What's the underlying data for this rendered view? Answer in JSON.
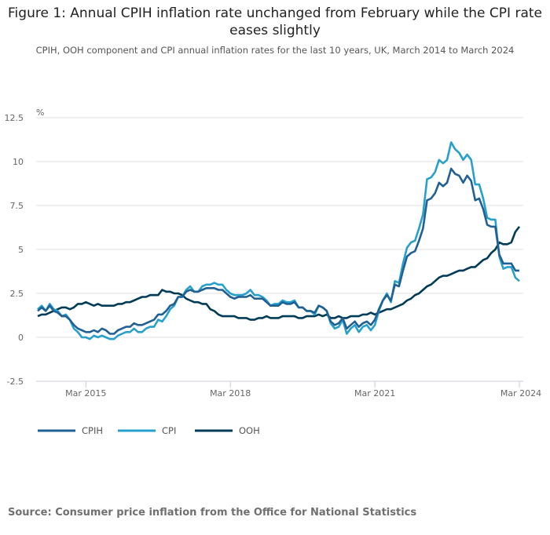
{
  "title": "Figure 1: Annual CPIH inflation rate unchanged from February while the CPI rate eases slightly",
  "subtitle": "CPIH, OOH component and CPI annual inflation rates for the last 10 years, UK, March 2014 to March 2024",
  "source": "Source: Consumer price inflation from the Office for National Statistics",
  "chart_data": {
    "type": "line",
    "ylabel": "%",
    "ylim": [
      -2.5,
      12.5
    ],
    "yticks": [
      "12.5",
      "10",
      "7.5",
      "5",
      "2.5",
      "0",
      "-2.5"
    ],
    "xticks": [
      "Mar 2015",
      "Mar 2018",
      "Mar 2021",
      "Mar 2024"
    ],
    "x_start": "Mar 2014",
    "x_end": "Mar 2024",
    "frequency": "monthly",
    "grid": true,
    "legend_position": "bottom-left",
    "series": [
      {
        "name": "CPIH",
        "color": "#206095",
        "values": [
          1.5,
          1.7,
          1.5,
          1.8,
          1.5,
          1.4,
          1.2,
          1.2,
          1.0,
          0.7,
          0.5,
          0.4,
          0.3,
          0.3,
          0.4,
          0.3,
          0.5,
          0.4,
          0.2,
          0.2,
          0.4,
          0.5,
          0.6,
          0.6,
          0.8,
          0.7,
          0.7,
          0.8,
          0.9,
          1.0,
          1.3,
          1.3,
          1.5,
          1.8,
          1.9,
          2.3,
          2.3,
          2.6,
          2.7,
          2.6,
          2.6,
          2.7,
          2.8,
          2.8,
          2.8,
          2.7,
          2.7,
          2.5,
          2.3,
          2.2,
          2.3,
          2.3,
          2.3,
          2.4,
          2.2,
          2.2,
          2.2,
          2.0,
          1.8,
          1.8,
          1.8,
          2.0,
          1.9,
          1.9,
          2.0,
          1.7,
          1.7,
          1.5,
          1.5,
          1.4,
          1.8,
          1.7,
          1.5,
          0.9,
          0.7,
          0.8,
          1.1,
          0.5,
          0.7,
          0.9,
          0.6,
          0.8,
          0.9,
          0.7,
          1.0,
          1.6,
          2.1,
          2.4,
          2.1,
          3.0,
          2.9,
          3.8,
          4.6,
          4.8,
          4.9,
          5.5,
          6.2,
          7.8,
          7.9,
          8.2,
          8.8,
          8.6,
          8.8,
          9.6,
          9.3,
          9.2,
          8.8,
          9.2,
          8.9,
          7.8,
          7.9,
          7.3,
          6.4,
          6.3,
          6.3,
          4.7,
          4.2,
          4.2,
          4.2,
          3.8,
          3.8
        ]
      },
      {
        "name": "CPI",
        "color": "#27a0cc",
        "values": [
          1.6,
          1.8,
          1.5,
          1.9,
          1.6,
          1.5,
          1.2,
          1.3,
          1.0,
          0.5,
          0.3,
          0.0,
          0.0,
          -0.1,
          0.1,
          0.0,
          0.1,
          0.0,
          -0.1,
          -0.1,
          0.1,
          0.2,
          0.3,
          0.3,
          0.5,
          0.3,
          0.3,
          0.5,
          0.6,
          0.6,
          1.0,
          0.9,
          1.2,
          1.6,
          1.8,
          2.3,
          2.3,
          2.7,
          2.9,
          2.6,
          2.6,
          2.9,
          3.0,
          3.0,
          3.1,
          3.0,
          3.0,
          2.7,
          2.5,
          2.4,
          2.4,
          2.4,
          2.5,
          2.7,
          2.4,
          2.4,
          2.3,
          2.1,
          1.8,
          1.9,
          1.9,
          2.1,
          2.0,
          2.0,
          2.1,
          1.7,
          1.7,
          1.5,
          1.5,
          1.3,
          1.8,
          1.7,
          1.5,
          0.8,
          0.5,
          0.6,
          1.0,
          0.2,
          0.5,
          0.7,
          0.3,
          0.6,
          0.7,
          0.4,
          0.7,
          1.5,
          2.1,
          2.5,
          2.0,
          3.2,
          3.1,
          4.2,
          5.1,
          5.4,
          5.5,
          6.2,
          7.0,
          9.0,
          9.1,
          9.4,
          10.1,
          9.9,
          10.1,
          11.1,
          10.7,
          10.5,
          10.1,
          10.4,
          10.1,
          8.7,
          8.7,
          7.9,
          6.8,
          6.7,
          6.7,
          4.6,
          3.9,
          4.0,
          4.0,
          3.4,
          3.2
        ]
      },
      {
        "name": "OOH",
        "color": "#003c57",
        "values": [
          1.2,
          1.3,
          1.3,
          1.4,
          1.5,
          1.6,
          1.7,
          1.7,
          1.6,
          1.7,
          1.9,
          1.9,
          2.0,
          1.9,
          1.8,
          1.9,
          1.8,
          1.8,
          1.8,
          1.8,
          1.9,
          1.9,
          2.0,
          2.0,
          2.1,
          2.2,
          2.3,
          2.3,
          2.4,
          2.4,
          2.4,
          2.7,
          2.6,
          2.6,
          2.5,
          2.5,
          2.4,
          2.2,
          2.1,
          2.0,
          2.0,
          1.9,
          1.9,
          1.6,
          1.5,
          1.3,
          1.2,
          1.2,
          1.2,
          1.2,
          1.1,
          1.1,
          1.1,
          1.0,
          1.0,
          1.1,
          1.1,
          1.2,
          1.1,
          1.1,
          1.1,
          1.2,
          1.2,
          1.2,
          1.2,
          1.1,
          1.1,
          1.2,
          1.2,
          1.2,
          1.3,
          1.2,
          1.3,
          1.1,
          1.1,
          1.2,
          1.1,
          1.1,
          1.2,
          1.2,
          1.2,
          1.3,
          1.3,
          1.4,
          1.3,
          1.4,
          1.5,
          1.6,
          1.6,
          1.7,
          1.8,
          1.9,
          2.1,
          2.2,
          2.4,
          2.5,
          2.7,
          2.9,
          3.0,
          3.2,
          3.4,
          3.5,
          3.5,
          3.6,
          3.7,
          3.8,
          3.8,
          3.9,
          4.0,
          4.0,
          4.2,
          4.4,
          4.5,
          4.8,
          5.0,
          5.4,
          5.3,
          5.3,
          5.4,
          6.0,
          6.3
        ]
      }
    ]
  }
}
